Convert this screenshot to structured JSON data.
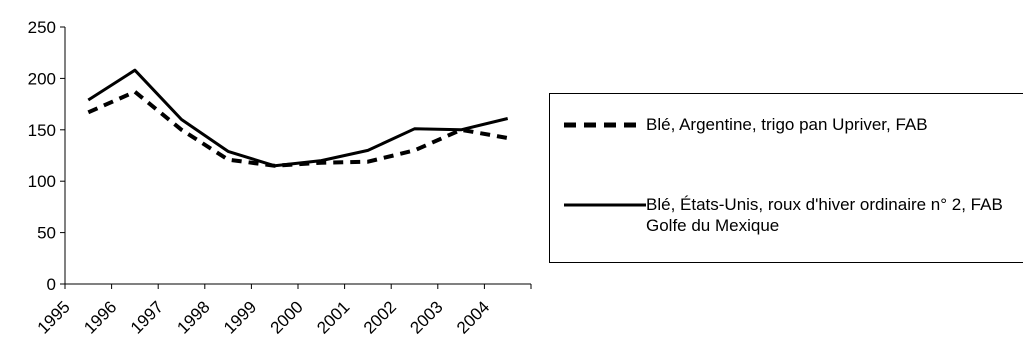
{
  "chart_data": {
    "type": "line",
    "title": "",
    "xlabel": "",
    "ylabel": "",
    "categories": [
      "1995",
      "1996",
      "1997",
      "1998",
      "1999",
      "2000",
      "2001",
      "2002",
      "2003",
      "2004"
    ],
    "ylim": [
      0,
      250
    ],
    "yticks": [
      0,
      50,
      100,
      150,
      200,
      250
    ],
    "grid": false,
    "legend_position": "right",
    "series": [
      {
        "name": "Blé, Argentine, trigo pan Upriver, FAB",
        "style": "dashed",
        "color": "#000000",
        "values": [
          167,
          187,
          150,
          121,
          115,
          118,
          119,
          130,
          150,
          142
        ]
      },
      {
        "name": "Blé, États-Unis, roux d'hiver ordinaire n° 2, FAB Golfe du Mexique",
        "style": "solid",
        "color": "#000000",
        "values": [
          179,
          208,
          160,
          129,
          115,
          120,
          130,
          151,
          150,
          161
        ]
      }
    ]
  }
}
